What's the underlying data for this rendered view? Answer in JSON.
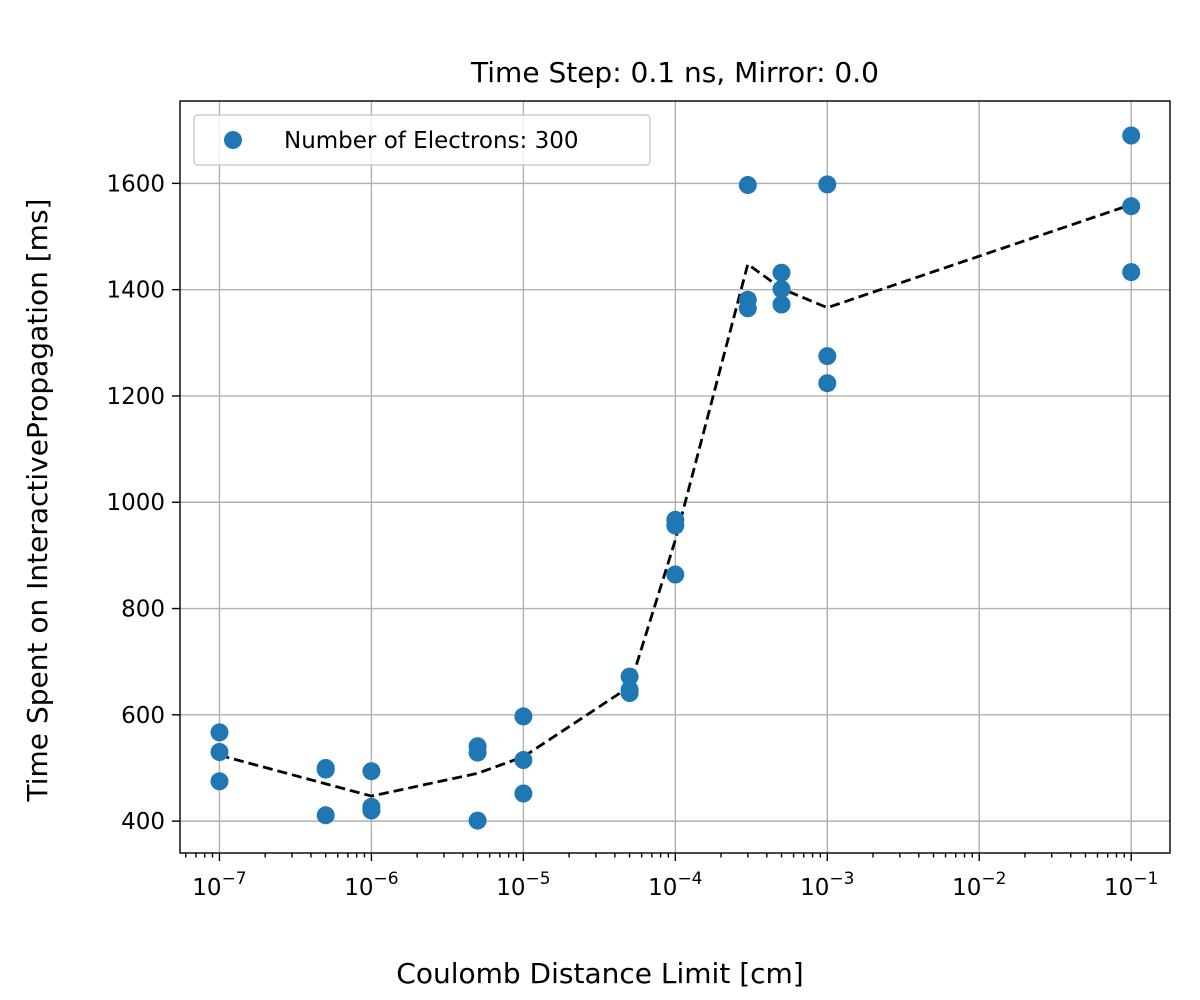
{
  "chart_data": {
    "type": "scatter",
    "title": "Time Step: 0.1 ns, Mirror: 0.0",
    "xlabel": "Coulomb Distance Limit [cm]",
    "ylabel": "Time Spent on InteractivePropagation [ms]",
    "xscale": "log",
    "xlim": [
      5.5e-08,
      0.18
    ],
    "ylim": [
      340,
      1755
    ],
    "grid": true,
    "legend_position": "top-left",
    "x_ticks": [
      {
        "value": 1e-07,
        "base": "10",
        "exp": "−7"
      },
      {
        "value": 1e-06,
        "base": "10",
        "exp": "−6"
      },
      {
        "value": 1e-05,
        "base": "10",
        "exp": "−5"
      },
      {
        "value": 0.0001,
        "base": "10",
        "exp": "−4"
      },
      {
        "value": 0.001,
        "base": "10",
        "exp": "−3"
      },
      {
        "value": 0.01,
        "base": "10",
        "exp": "−2"
      },
      {
        "value": 0.1,
        "base": "10",
        "exp": "−1"
      }
    ],
    "y_ticks": [
      400,
      600,
      800,
      1000,
      1200,
      1400,
      1600
    ],
    "series": [
      {
        "name": "Number of Electrons: 300",
        "kind": "scatter",
        "color": "#1f77b4",
        "points": [
          [
            1e-07,
            567
          ],
          [
            1e-07,
            530
          ],
          [
            1e-07,
            475
          ],
          [
            5e-07,
            500
          ],
          [
            5e-07,
            497
          ],
          [
            5e-07,
            411
          ],
          [
            1e-06,
            494
          ],
          [
            1e-06,
            427
          ],
          [
            1e-06,
            420
          ],
          [
            5e-06,
            541
          ],
          [
            5e-06,
            529
          ],
          [
            5e-06,
            401
          ],
          [
            1e-05,
            597
          ],
          [
            1e-05,
            515
          ],
          [
            1e-05,
            452
          ],
          [
            5e-05,
            672
          ],
          [
            5e-05,
            647
          ],
          [
            5e-05,
            641
          ],
          [
            0.0001,
            967
          ],
          [
            0.0001,
            956
          ],
          [
            0.0001,
            864
          ],
          [
            0.0003,
            1597
          ],
          [
            0.0003,
            1381
          ],
          [
            0.0003,
            1365
          ],
          [
            0.0005,
            1432
          ],
          [
            0.0005,
            1401
          ],
          [
            0.0005,
            1372
          ],
          [
            0.001,
            1598
          ],
          [
            0.001,
            1275
          ],
          [
            0.001,
            1224
          ],
          [
            0.1,
            1690
          ],
          [
            0.1,
            1557
          ],
          [
            0.1,
            1433
          ]
        ]
      },
      {
        "kind": "line",
        "color": "#000000",
        "style": "dashed",
        "points": [
          [
            1e-07,
            524
          ],
          [
            1e-06,
            447
          ],
          [
            5e-06,
            490
          ],
          [
            1e-05,
            521
          ],
          [
            5e-05,
            653
          ],
          [
            0.0001,
            929
          ],
          [
            0.0003,
            1448
          ],
          [
            0.0005,
            1402
          ],
          [
            0.001,
            1366
          ],
          [
            0.1,
            1560
          ]
        ]
      }
    ]
  }
}
